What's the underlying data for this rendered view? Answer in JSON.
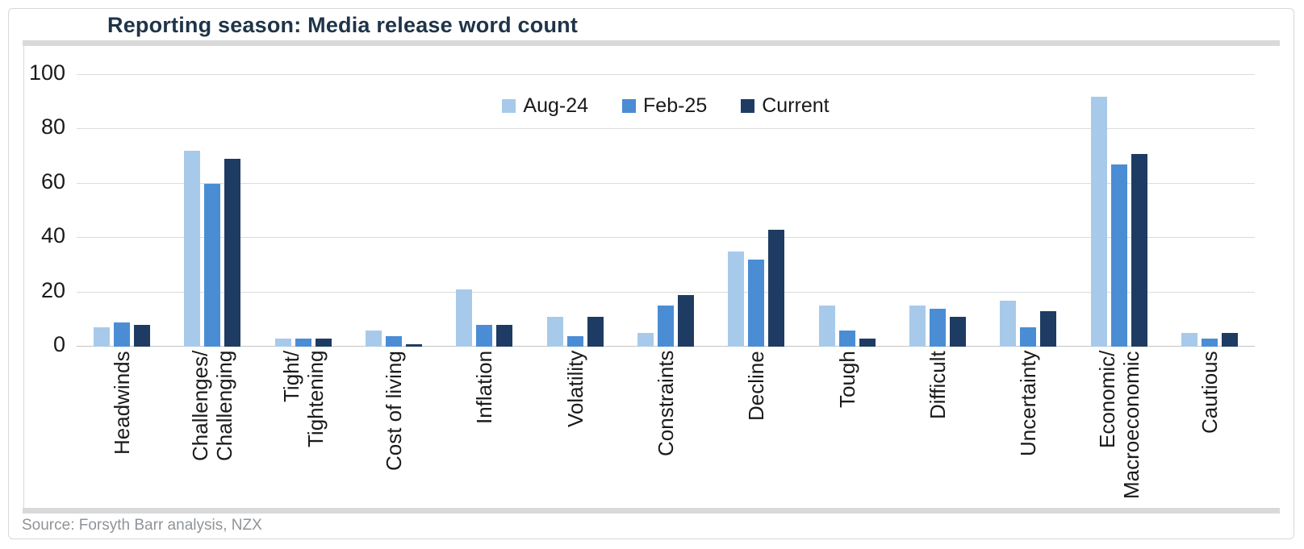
{
  "title": "Reporting season: Media release word count",
  "source": "Source: Forsyth Barr analysis, NZX",
  "colors": {
    "title_text": "#1f3449",
    "axis_text": "#1a1a1a",
    "gridline": "#dcdcdc",
    "divider_rule": "#d9d9d9",
    "source_text": "#8f9499",
    "series_aug24": "#a7caea",
    "series_feb25": "#4a8dd4",
    "series_current": "#1e3c63"
  },
  "chart_data": {
    "type": "bar",
    "title": "Reporting season: Media release word count",
    "xlabel": "",
    "ylabel": "",
    "ylim": [
      0,
      100
    ],
    "yticks": [
      0,
      20,
      40,
      60,
      80,
      100
    ],
    "grid": "horizontal",
    "legend_position": "top-center",
    "categories": [
      "Headwinds",
      "Challenges/\nChallenging",
      "Tight/\nTightening",
      "Cost of living",
      "Inflation",
      "Volatility",
      "Constraints",
      "Decline",
      "Tough",
      "Difficult",
      "Uncertainty",
      "Economic/\nMacroeconomic",
      "Cautious"
    ],
    "series": [
      {
        "name": "Aug-24",
        "color": "#a7caea",
        "values": [
          7,
          72,
          3,
          6,
          21,
          11,
          5,
          35,
          15,
          15,
          17,
          92,
          5
        ]
      },
      {
        "name": "Feb-25",
        "color": "#4a8dd4",
        "values": [
          9,
          60,
          3,
          4,
          8,
          4,
          15,
          32,
          6,
          14,
          7,
          67,
          3
        ]
      },
      {
        "name": "Current",
        "color": "#1e3c63",
        "values": [
          8,
          69,
          3,
          1,
          8,
          11,
          19,
          43,
          3,
          11,
          13,
          71,
          5
        ]
      }
    ]
  }
}
